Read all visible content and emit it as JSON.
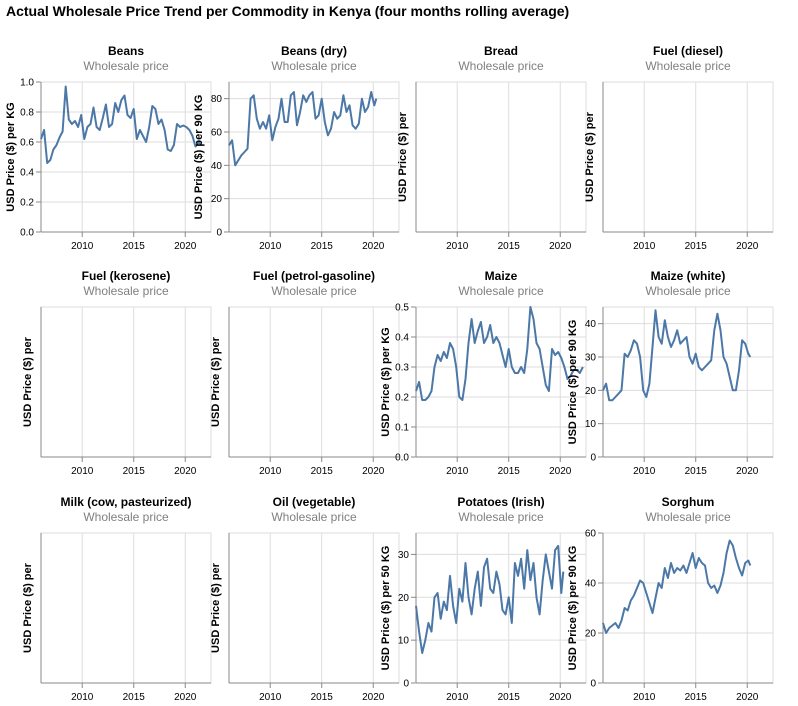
{
  "title": "Actual Wholesale Price Trend per Commodity in Kenya (four months rolling average)",
  "colors": {
    "line": "#4c78a8",
    "grid": "#dddddd",
    "axis": "#888888",
    "text": "#000000",
    "subtitle": "#7f7f7f"
  },
  "chart_data": [
    {
      "type": "line",
      "title": "Beans",
      "subtitle": "Wholesale price",
      "ylabel": "USD Price ($) per KG",
      "xlim": [
        2006,
        2022.5
      ],
      "ylim": [
        0,
        1.0
      ],
      "xticks": [
        2010,
        2015,
        2020
      ],
      "yticks": [
        0,
        0.2,
        0.4,
        0.6,
        0.8,
        1.0
      ],
      "ytick_labels": [
        "0.0",
        "0.2",
        "0.4",
        "0.6",
        "0.8",
        "1.0"
      ],
      "x": [
        2006.0,
        2006.3,
        2006.6,
        2006.9,
        2007.2,
        2007.5,
        2007.8,
        2008.1,
        2008.4,
        2008.7,
        2009.0,
        2009.3,
        2009.6,
        2009.9,
        2010.2,
        2010.5,
        2010.8,
        2011.1,
        2011.4,
        2011.7,
        2012.0,
        2012.3,
        2012.6,
        2012.9,
        2013.2,
        2013.5,
        2013.8,
        2014.1,
        2014.4,
        2014.7,
        2015.0,
        2015.3,
        2015.6,
        2015.9,
        2016.2,
        2016.5,
        2016.8,
        2017.1,
        2017.4,
        2017.7,
        2018.0,
        2018.3,
        2018.6,
        2018.9,
        2019.2,
        2019.5,
        2019.8,
        2020.1,
        2020.4,
        2020.7,
        2021.0,
        2021.3,
        2021.6
      ],
      "y": [
        0.62,
        0.68,
        0.46,
        0.48,
        0.55,
        0.58,
        0.63,
        0.67,
        0.97,
        0.75,
        0.72,
        0.74,
        0.7,
        0.78,
        0.62,
        0.7,
        0.72,
        0.83,
        0.7,
        0.68,
        0.76,
        0.85,
        0.7,
        0.72,
        0.86,
        0.8,
        0.88,
        0.91,
        0.78,
        0.76,
        0.82,
        0.62,
        0.68,
        0.64,
        0.6,
        0.7,
        0.84,
        0.82,
        0.72,
        0.75,
        0.68,
        0.55,
        0.54,
        0.58,
        0.72,
        0.7,
        0.71,
        0.7,
        0.68,
        0.64,
        0.57,
        0.6,
        0.58
      ]
    },
    {
      "type": "line",
      "title": "Beans (dry)",
      "subtitle": "Wholesale price",
      "ylabel": "USD Price ($) per 90 KG",
      "xlim": [
        2006,
        2022.5
      ],
      "ylim": [
        0,
        90
      ],
      "xticks": [
        2010,
        2015,
        2020
      ],
      "yticks": [
        0,
        20,
        40,
        60,
        80
      ],
      "ytick_labels": [
        "0",
        "20",
        "40",
        "60",
        "80"
      ],
      "x": [
        2006.0,
        2006.3,
        2006.6,
        2006.9,
        2007.2,
        2007.5,
        2007.8,
        2008.1,
        2008.4,
        2008.7,
        2009.0,
        2009.3,
        2009.6,
        2009.9,
        2010.2,
        2010.5,
        2010.8,
        2011.1,
        2011.4,
        2011.7,
        2012.0,
        2012.3,
        2012.6,
        2012.9,
        2013.2,
        2013.5,
        2013.8,
        2014.1,
        2014.4,
        2014.7,
        2015.0,
        2015.3,
        2015.6,
        2015.9,
        2016.2,
        2016.5,
        2016.8,
        2017.1,
        2017.4,
        2017.7,
        2018.0,
        2018.3,
        2018.6,
        2018.9,
        2019.2,
        2019.5,
        2019.8,
        2020.1,
        2020.3
      ],
      "y": [
        52,
        55,
        40,
        43,
        46,
        48,
        50,
        80,
        82,
        68,
        62,
        66,
        62,
        70,
        55,
        63,
        68,
        80,
        66,
        66,
        82,
        84,
        64,
        72,
        82,
        78,
        82,
        84,
        68,
        70,
        80,
        66,
        58,
        62,
        72,
        68,
        70,
        82,
        72,
        76,
        64,
        62,
        65,
        80,
        72,
        75,
        84,
        76,
        80
      ]
    },
    {
      "type": "line",
      "title": "Bread",
      "subtitle": "Wholesale price",
      "ylabel": "USD Price ($) per",
      "xlim": [
        2006,
        2022.5
      ],
      "ylim": [
        0,
        1
      ],
      "xticks": [
        2010,
        2015,
        2020
      ],
      "yticks": [],
      "ytick_labels": [],
      "x": [],
      "y": []
    },
    {
      "type": "line",
      "title": "Fuel (diesel)",
      "subtitle": "Wholesale price",
      "ylabel": "USD Price ($) per",
      "xlim": [
        2006,
        2022.5
      ],
      "ylim": [
        0,
        1
      ],
      "xticks": [
        2010,
        2015,
        2020
      ],
      "yticks": [],
      "ytick_labels": [],
      "x": [],
      "y": []
    },
    {
      "type": "line",
      "title": "Fuel (kerosene)",
      "subtitle": "Wholesale price",
      "ylabel": "USD Price ($) per",
      "xlim": [
        2006,
        2022.5
      ],
      "ylim": [
        0,
        1
      ],
      "xticks": [
        2010,
        2015,
        2020
      ],
      "yticks": [],
      "ytick_labels": [],
      "x": [],
      "y": []
    },
    {
      "type": "line",
      "title": "Fuel (petrol-gasoline)",
      "subtitle": "Wholesale price",
      "ylabel": "USD Price ($) per",
      "xlim": [
        2006,
        2022.5
      ],
      "ylim": [
        0,
        1
      ],
      "xticks": [
        2010,
        2015,
        2020
      ],
      "yticks": [],
      "ytick_labels": [],
      "x": [],
      "y": []
    },
    {
      "type": "line",
      "title": "Maize",
      "subtitle": "Wholesale price",
      "ylabel": "USD Price ($) per KG",
      "xlim": [
        2006,
        2022.5
      ],
      "ylim": [
        0,
        0.5
      ],
      "xticks": [
        2010,
        2015,
        2020
      ],
      "yticks": [
        0,
        0.1,
        0.2,
        0.3,
        0.4,
        0.5
      ],
      "ytick_labels": [
        "0.0",
        "0.1",
        "0.2",
        "0.3",
        "0.4",
        "0.5"
      ],
      "x": [
        2006.0,
        2006.3,
        2006.6,
        2006.9,
        2007.2,
        2007.5,
        2007.8,
        2008.1,
        2008.4,
        2008.7,
        2009.0,
        2009.3,
        2009.6,
        2009.9,
        2010.2,
        2010.5,
        2010.8,
        2011.1,
        2011.4,
        2011.7,
        2012.0,
        2012.3,
        2012.6,
        2012.9,
        2013.2,
        2013.5,
        2013.8,
        2014.1,
        2014.4,
        2014.7,
        2015.0,
        2015.3,
        2015.6,
        2015.9,
        2016.2,
        2016.5,
        2016.8,
        2017.1,
        2017.4,
        2017.7,
        2018.0,
        2018.3,
        2018.6,
        2018.9,
        2019.2,
        2019.5,
        2019.8,
        2020.1,
        2020.4,
        2020.7,
        2021.0,
        2021.3,
        2021.6,
        2021.9,
        2022.2
      ],
      "y": [
        0.22,
        0.25,
        0.19,
        0.19,
        0.2,
        0.22,
        0.3,
        0.34,
        0.32,
        0.35,
        0.33,
        0.38,
        0.36,
        0.3,
        0.2,
        0.19,
        0.26,
        0.38,
        0.46,
        0.38,
        0.42,
        0.45,
        0.38,
        0.4,
        0.44,
        0.38,
        0.4,
        0.38,
        0.34,
        0.3,
        0.36,
        0.3,
        0.28,
        0.28,
        0.3,
        0.28,
        0.36,
        0.5,
        0.46,
        0.38,
        0.36,
        0.3,
        0.24,
        0.22,
        0.36,
        0.34,
        0.35,
        0.33,
        0.3,
        0.26,
        0.27,
        0.29,
        0.29,
        0.28,
        0.3
      ]
    },
    {
      "type": "line",
      "title": "Maize (white)",
      "subtitle": "Wholesale price",
      "ylabel": "USD Price ($) per 90 KG",
      "xlim": [
        2006,
        2022.5
      ],
      "ylim": [
        0,
        45
      ],
      "xticks": [
        2010,
        2015,
        2020
      ],
      "yticks": [
        0,
        10,
        20,
        30,
        40
      ],
      "ytick_labels": [
        "0",
        "10",
        "20",
        "30",
        "40"
      ],
      "x": [
        2006.0,
        2006.3,
        2006.6,
        2006.9,
        2007.2,
        2007.5,
        2007.8,
        2008.1,
        2008.4,
        2008.7,
        2009.0,
        2009.3,
        2009.6,
        2009.9,
        2010.2,
        2010.5,
        2010.8,
        2011.1,
        2011.4,
        2011.7,
        2012.0,
        2012.3,
        2012.6,
        2012.9,
        2013.2,
        2013.5,
        2013.8,
        2014.1,
        2014.4,
        2014.7,
        2015.0,
        2015.3,
        2015.6,
        2015.9,
        2016.2,
        2016.5,
        2016.8,
        2017.1,
        2017.4,
        2017.7,
        2018.0,
        2018.3,
        2018.6,
        2018.9,
        2019.2,
        2019.5,
        2019.8,
        2020.1,
        2020.3
      ],
      "y": [
        20,
        22,
        17,
        17,
        18,
        19,
        20,
        31,
        30,
        32,
        35,
        34,
        30,
        20,
        18,
        22,
        33,
        44,
        36,
        34,
        41,
        36,
        33,
        35,
        38,
        34,
        35,
        36,
        30,
        28,
        31,
        27,
        26,
        27,
        28,
        29,
        38,
        43,
        38,
        30,
        28,
        24,
        20,
        20,
        26,
        35,
        34,
        31,
        30
      ]
    },
    {
      "type": "line",
      "title": "Milk (cow, pasteurized)",
      "subtitle": "Wholesale price",
      "ylabel": "USD Price ($) per",
      "xlim": [
        2006,
        2022.5
      ],
      "ylim": [
        0,
        1
      ],
      "xticks": [
        2010,
        2015,
        2020
      ],
      "yticks": [],
      "ytick_labels": [],
      "x": [],
      "y": []
    },
    {
      "type": "line",
      "title": "Oil (vegetable)",
      "subtitle": "Wholesale price",
      "ylabel": "USD Price ($) per",
      "xlim": [
        2006,
        2022.5
      ],
      "ylim": [
        0,
        1
      ],
      "xticks": [
        2010,
        2015,
        2020
      ],
      "yticks": [],
      "ytick_labels": [],
      "x": [],
      "y": []
    },
    {
      "type": "line",
      "title": "Potatoes (Irish)",
      "subtitle": "Wholesale price",
      "ylabel": "USD Price ($) per 50 KG",
      "xlim": [
        2006,
        2022.5
      ],
      "ylim": [
        0,
        35
      ],
      "xticks": [
        2010,
        2015,
        2020
      ],
      "yticks": [
        0,
        10,
        20,
        30
      ],
      "ytick_labels": [
        "0",
        "10",
        "20",
        "30"
      ],
      "x": [
        2006.0,
        2006.3,
        2006.6,
        2006.9,
        2007.2,
        2007.5,
        2007.8,
        2008.1,
        2008.4,
        2008.7,
        2009.0,
        2009.3,
        2009.6,
        2009.9,
        2010.2,
        2010.5,
        2010.8,
        2011.1,
        2011.4,
        2011.7,
        2012.0,
        2012.3,
        2012.6,
        2012.9,
        2013.2,
        2013.5,
        2013.8,
        2014.1,
        2014.4,
        2014.7,
        2015.0,
        2015.3,
        2015.6,
        2015.9,
        2016.2,
        2016.5,
        2016.8,
        2017.1,
        2017.4,
        2017.7,
        2018.0,
        2018.3,
        2018.6,
        2018.9,
        2019.2,
        2019.5,
        2019.8,
        2020.1,
        2020.3
      ],
      "y": [
        18,
        12,
        7,
        10,
        14,
        12,
        20,
        21,
        15,
        19,
        17,
        25,
        18,
        14,
        22,
        19,
        28,
        20,
        16,
        22,
        26,
        18,
        27,
        29,
        22,
        21,
        26,
        23,
        17,
        16,
        20,
        14,
        28,
        25,
        29,
        22,
        31,
        24,
        28,
        20,
        16,
        24,
        30,
        26,
        22,
        31,
        32,
        21,
        26
      ]
    },
    {
      "type": "line",
      "title": "Sorghum",
      "subtitle": "Wholesale price",
      "ylabel": "USD Price ($) per 90 KG",
      "xlim": [
        2006,
        2022.5
      ],
      "ylim": [
        0,
        60
      ],
      "xticks": [
        2010,
        2015,
        2020
      ],
      "yticks": [
        0,
        20,
        40,
        60
      ],
      "ytick_labels": [
        "0",
        "20",
        "40",
        "60"
      ],
      "x": [
        2006.0,
        2006.3,
        2006.6,
        2006.9,
        2007.2,
        2007.5,
        2007.8,
        2008.1,
        2008.4,
        2008.7,
        2009.0,
        2009.3,
        2009.6,
        2009.9,
        2010.2,
        2010.5,
        2010.8,
        2011.1,
        2011.4,
        2011.7,
        2012.0,
        2012.3,
        2012.6,
        2012.9,
        2013.2,
        2013.5,
        2013.8,
        2014.1,
        2014.4,
        2014.7,
        2015.0,
        2015.3,
        2015.6,
        2015.9,
        2016.2,
        2016.5,
        2016.8,
        2017.1,
        2017.4,
        2017.7,
        2018.0,
        2018.3,
        2018.6,
        2018.9,
        2019.2,
        2019.5,
        2019.8,
        2020.1,
        2020.3
      ],
      "y": [
        24,
        20,
        22,
        23,
        24,
        22,
        25,
        30,
        29,
        33,
        35,
        38,
        41,
        40,
        36,
        32,
        28,
        34,
        40,
        38,
        46,
        42,
        48,
        44,
        46,
        45,
        47,
        44,
        48,
        52,
        46,
        50,
        48,
        47,
        40,
        38,
        39,
        36,
        39,
        44,
        52,
        57,
        55,
        50,
        46,
        43,
        48,
        49,
        47
      ]
    }
  ]
}
